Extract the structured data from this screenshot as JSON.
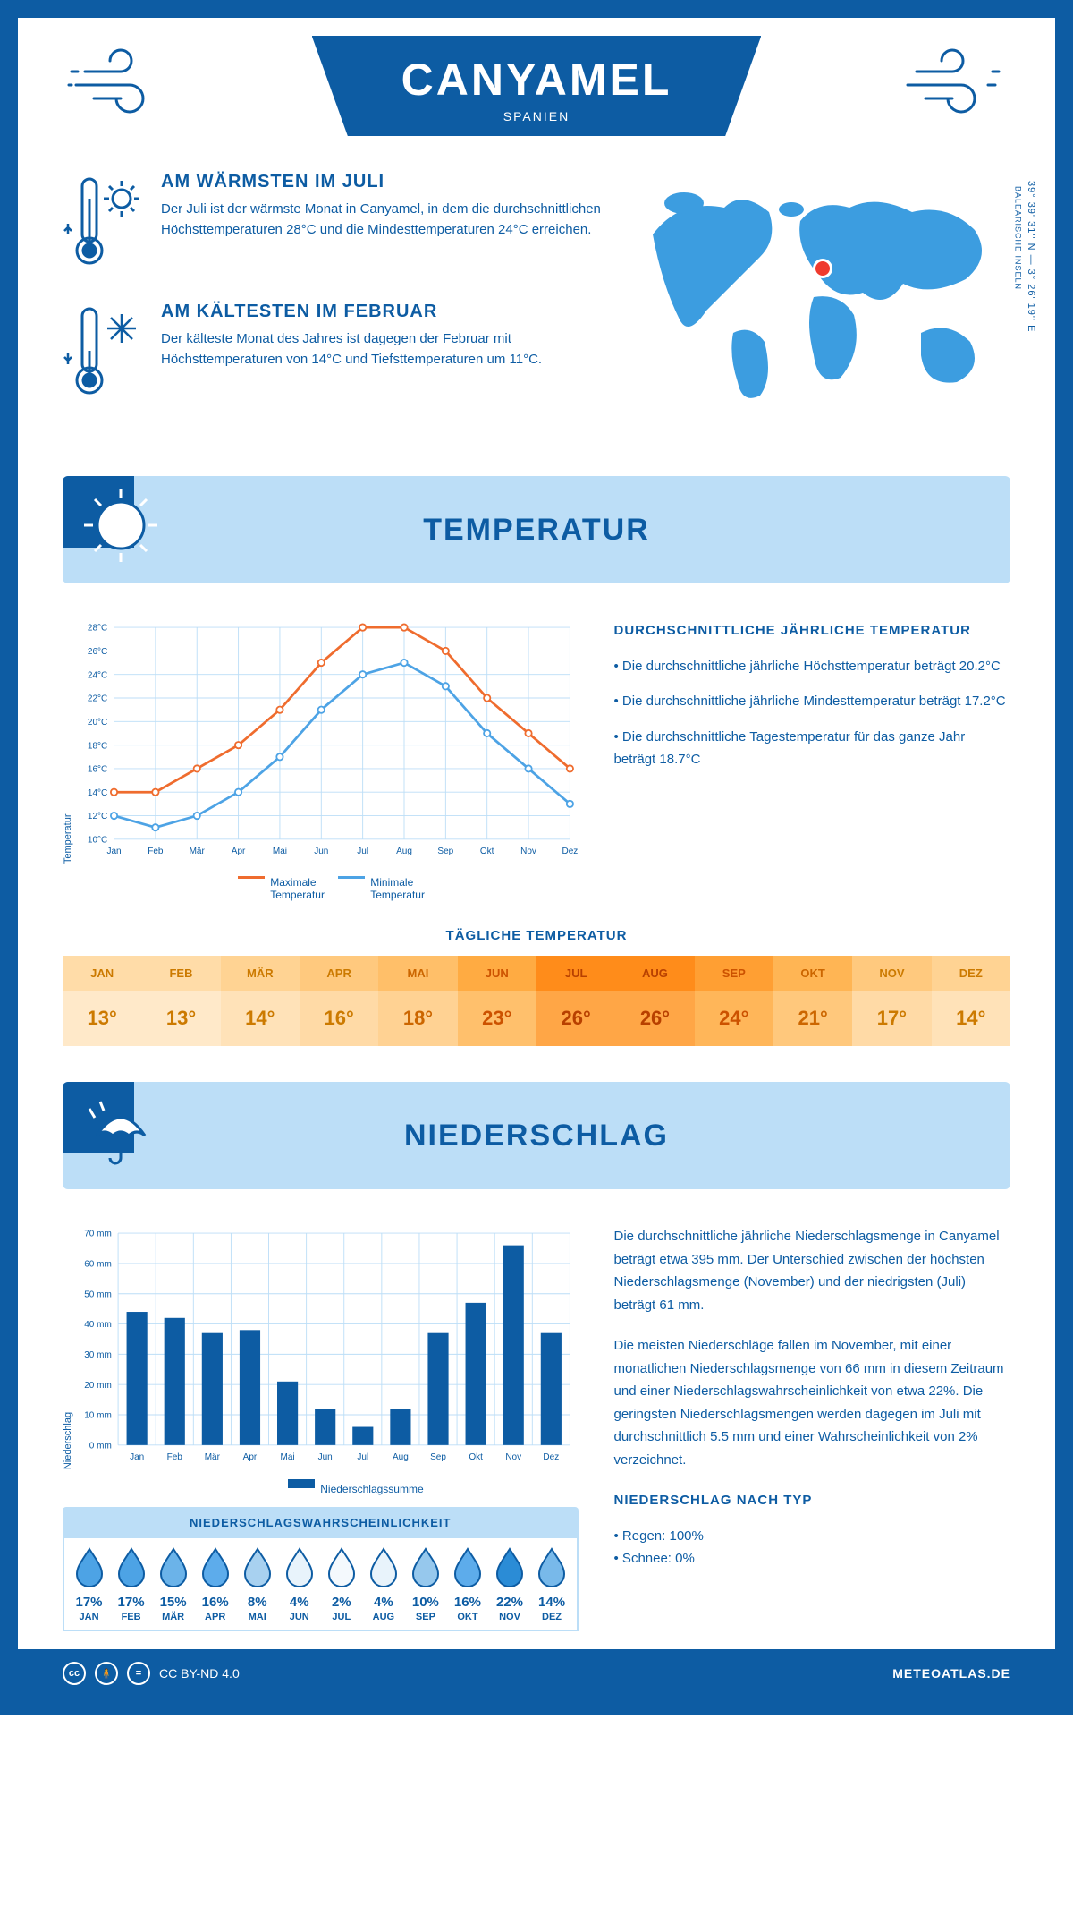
{
  "colors": {
    "primary": "#0d5ca3",
    "light_blue": "#bcdef7",
    "orange": "#ef6c2e",
    "blue_line": "#4da3e5",
    "grid": "#bcdef7",
    "bar": "#0d5ca3",
    "marker": "#ef3b2e"
  },
  "header": {
    "title": "CANYAMEL",
    "subtitle": "SPANIEN"
  },
  "coords": {
    "main": "39° 39' 31'' N — 3° 26' 19'' E",
    "sub": "BALEARISCHE INSELN"
  },
  "info_warm": {
    "title": "AM WÄRMSTEN IM JULI",
    "body": "Der Juli ist der wärmste Monat in Canyamel, in dem die durchschnittlichen Höchsttemperaturen 28°C und die Mindesttemperaturen 24°C erreichen."
  },
  "info_cold": {
    "title": "AM KÄLTESTEN IM FEBRUAR",
    "body": "Der kälteste Monat des Jahres ist dagegen der Februar mit Höchsttemperaturen von 14°C und Tiefsttemperaturen um 11°C."
  },
  "section_temp": "TEMPERATUR",
  "section_precip": "NIEDERSCHLAG",
  "temp_chart": {
    "type": "line",
    "ylabel": "Temperatur",
    "months": [
      "Jan",
      "Feb",
      "Mär",
      "Apr",
      "Mai",
      "Jun",
      "Jul",
      "Aug",
      "Sep",
      "Okt",
      "Nov",
      "Dez"
    ],
    "max_series": [
      14,
      14,
      16,
      18,
      21,
      25,
      28,
      28,
      26,
      22,
      19,
      16
    ],
    "min_series": [
      12,
      11,
      12,
      14,
      17,
      21,
      24,
      25,
      23,
      19,
      16,
      13
    ],
    "ylim": [
      10,
      28
    ],
    "ytick_step": 2,
    "line_width": 3,
    "marker": "circle",
    "max_color": "#ef6c2e",
    "min_color": "#4da3e5",
    "grid_color": "#bcdef7",
    "legend_max": "Maximale Temperatur",
    "legend_min": "Minimale Temperatur"
  },
  "temp_desc": {
    "title": "DURCHSCHNITTLICHE JÄHRLICHE TEMPERATUR",
    "b1": "• Die durchschnittliche jährliche Höchsttemperatur beträgt 20.2°C",
    "b2": "• Die durchschnittliche jährliche Mindesttemperatur beträgt 17.2°C",
    "b3": "• Die durchschnittliche Tagestemperatur für das ganze Jahr beträgt 18.7°C"
  },
  "daily_temp": {
    "title": "TÄGLICHE TEMPERATUR",
    "months": [
      "JAN",
      "FEB",
      "MÄR",
      "APR",
      "MAI",
      "JUN",
      "JUL",
      "AUG",
      "SEP",
      "OKT",
      "NOV",
      "DEZ"
    ],
    "values": [
      "13°",
      "13°",
      "14°",
      "16°",
      "18°",
      "23°",
      "26°",
      "26°",
      "24°",
      "21°",
      "17°",
      "14°"
    ],
    "head_colors": [
      "#ffdca8",
      "#ffdca8",
      "#ffd393",
      "#ffc97e",
      "#ffbf69",
      "#ffab42",
      "#ff8c1a",
      "#ff8c1a",
      "#ff9f33",
      "#ffb554",
      "#ffc97e",
      "#ffd393"
    ],
    "val_colors": [
      "#ffe9c9",
      "#ffe9c9",
      "#ffe2b8",
      "#ffdaa6",
      "#ffd293",
      "#ffc06c",
      "#ffa646",
      "#ffa646",
      "#ffb659",
      "#ffc87c",
      "#ffdaa6",
      "#ffe2b8"
    ],
    "text_colors": [
      "#cc7a00",
      "#cc7a00",
      "#cc7a00",
      "#cc7a00",
      "#cc6600",
      "#cc5200",
      "#b84000",
      "#b84000",
      "#cc5200",
      "#cc6600",
      "#cc7a00",
      "#cc7a00"
    ]
  },
  "precip_chart": {
    "type": "bar",
    "ylabel": "Niederschlag",
    "months": [
      "Jan",
      "Feb",
      "Mär",
      "Apr",
      "Mai",
      "Jun",
      "Jul",
      "Aug",
      "Sep",
      "Okt",
      "Nov",
      "Dez"
    ],
    "values": [
      44,
      42,
      37,
      38,
      21,
      12,
      6,
      12,
      37,
      47,
      66,
      37
    ],
    "ylim": [
      0,
      70
    ],
    "ytick_step": 10,
    "bar_color": "#0d5ca3",
    "grid_color": "#bcdef7",
    "bar_width": 0.55,
    "legend": "Niederschlagssumme"
  },
  "precip_desc": {
    "p1": "Die durchschnittliche jährliche Niederschlagsmenge in Canyamel beträgt etwa 395 mm. Der Unterschied zwischen der höchsten Niederschlagsmenge (November) und der niedrigsten (Juli) beträgt 61 mm.",
    "p2": "Die meisten Niederschläge fallen im November, mit einer monatlichen Niederschlagsmenge von 66 mm in diesem Zeitraum und einer Niederschlagswahrscheinlichkeit von etwa 22%. Die geringsten Niederschlagsmengen werden dagegen im Juli mit durchschnittlich 5.5 mm und einer Wahrscheinlichkeit von 2% verzeichnet.",
    "type_title": "NIEDERSCHLAG NACH TYP",
    "type1": "• Regen: 100%",
    "type2": "• Schnee: 0%"
  },
  "prob": {
    "title": "NIEDERSCHLAGSWAHRSCHEINLICHKEIT",
    "months": [
      "JAN",
      "FEB",
      "MÄR",
      "APR",
      "MAI",
      "JUN",
      "JUL",
      "AUG",
      "SEP",
      "OKT",
      "NOV",
      "DEZ"
    ],
    "values": [
      "17%",
      "17%",
      "15%",
      "16%",
      "8%",
      "4%",
      "2%",
      "4%",
      "10%",
      "16%",
      "22%",
      "14%"
    ],
    "fills": [
      "#4da3e5",
      "#4da3e5",
      "#6bb3e9",
      "#5daceb",
      "#a8d1f0",
      "#e8f3fb",
      "#f4f9fd",
      "#e8f3fb",
      "#96c8ed",
      "#5daceb",
      "#2b8cd6",
      "#78b9ea"
    ]
  },
  "footer": {
    "license": "CC BY-ND 4.0",
    "site": "METEOATLAS.DE"
  }
}
